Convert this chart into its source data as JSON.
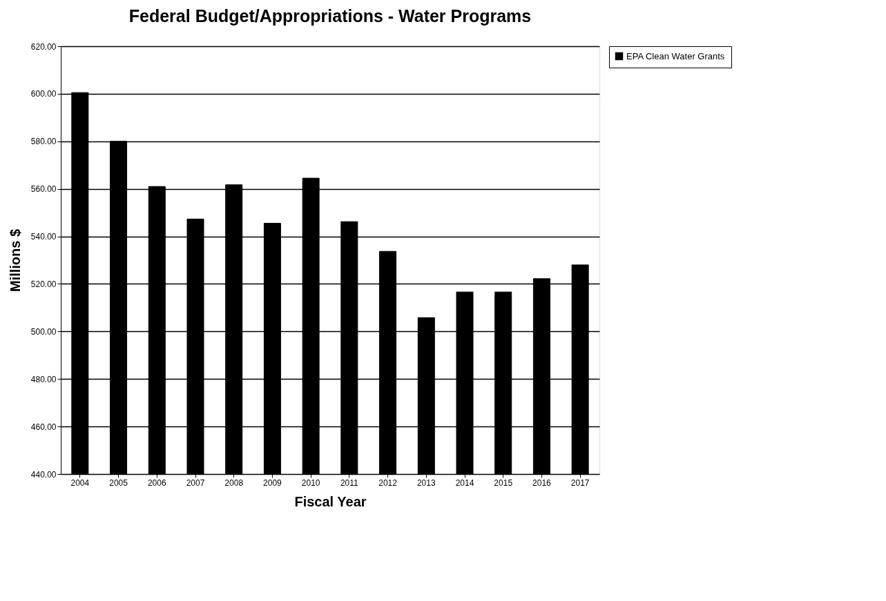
{
  "chart_data": {
    "type": "bar",
    "title": "Federal Budget/Appropriations - Water Programs",
    "xlabel": "Fiscal Year",
    "ylabel": "Millions $",
    "categories": [
      "2004",
      "2005",
      "2006",
      "2007",
      "2008",
      "2009",
      "2010",
      "2011",
      "2012",
      "2013",
      "2014",
      "2015",
      "2016",
      "2017"
    ],
    "series": [
      {
        "name": "EPA Clean Water Grants",
        "color": "#000000",
        "values": [
          600.5,
          580.0,
          561.0,
          547.3,
          561.7,
          545.5,
          564.5,
          546.2,
          533.7,
          505.8,
          516.6,
          516.6,
          522.2,
          528.0
        ]
      }
    ],
    "ylim": [
      440,
      620
    ],
    "yticks": [
      {
        "value": 440,
        "label": "440.00"
      },
      {
        "value": 460,
        "label": "460.00"
      },
      {
        "value": 480,
        "label": "480.00"
      },
      {
        "value": 500,
        "label": "500.00"
      },
      {
        "value": 520,
        "label": "520.00"
      },
      {
        "value": 540,
        "label": "540.00"
      },
      {
        "value": 560,
        "label": "560.00"
      },
      {
        "value": 580,
        "label": "580.00"
      },
      {
        "value": 600,
        "label": "600.00"
      },
      {
        "value": 620,
        "label": "620.00"
      }
    ],
    "grid": "y",
    "legend": "right"
  }
}
